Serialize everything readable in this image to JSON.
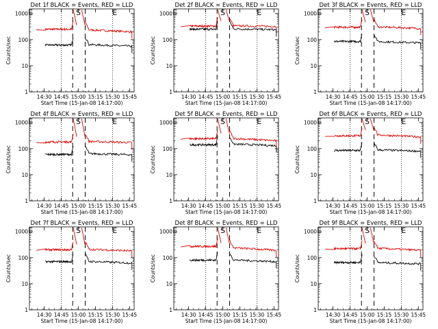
{
  "figure": {
    "xlabel": "Start Time (15-Jan-08 14:17:00)",
    "ylabel": "Counts/sec",
    "xtick_labels": [
      "14:30",
      "14:45",
      "15:00",
      "15:15",
      "15:30",
      "15:45"
    ],
    "ytick_labels": [
      "1",
      "10",
      "100",
      "1000"
    ],
    "markers": [
      "E",
      "S",
      "E"
    ],
    "colors": {
      "events": "#000000",
      "lld": "#dd0000"
    },
    "xlim_minutes_from_1417": [
      0,
      92
    ],
    "ylim": [
      1,
      1500
    ],
    "y_log": true
  },
  "chart_data": [
    {
      "type": "line",
      "title": "Det 1f BLACK = Events, RED = LLD",
      "series": [
        {
          "name": "Events",
          "values": {
            "pre": 62,
            "post": 65,
            "end": 56
          }
        },
        {
          "name": "LLD",
          "values": {
            "pre": 250,
            "post": 240,
            "end": 200
          }
        }
      ]
    },
    {
      "type": "line",
      "title": "Det 2f BLACK = Events, RED = LLD",
      "series": [
        {
          "name": "Events",
          "values": {
            "pre": 250,
            "post": 260,
            "end": 240
          }
        },
        {
          "name": "LLD",
          "values": {
            "pre": 330,
            "post": 340,
            "end": 320
          }
        }
      ]
    },
    {
      "type": "line",
      "title": "Det 3f BLACK = Events, RED = LLD",
      "series": [
        {
          "name": "Events",
          "values": {
            "pre": 85,
            "post": 85,
            "end": 75
          }
        },
        {
          "name": "LLD",
          "values": {
            "pre": 300,
            "post": 310,
            "end": 270
          }
        }
      ]
    },
    {
      "type": "line",
      "title": "Det 4f BLACK = Events, RED = LLD",
      "series": [
        {
          "name": "Events",
          "values": {
            "pre": 60,
            "post": 65,
            "end": 58
          }
        },
        {
          "name": "LLD",
          "values": {
            "pre": 180,
            "post": 190,
            "end": 170
          }
        }
      ]
    },
    {
      "type": "line",
      "title": "Det 5f BLACK = Events, RED = LLD",
      "series": [
        {
          "name": "Events",
          "values": {
            "pre": 140,
            "post": 150,
            "end": 130
          }
        },
        {
          "name": "LLD",
          "values": {
            "pre": 240,
            "post": 250,
            "end": 200
          }
        }
      ]
    },
    {
      "type": "line",
      "title": "Det 6f BLACK = Events, RED = LLD",
      "series": [
        {
          "name": "Events",
          "values": {
            "pre": 85,
            "post": 90,
            "end": 80
          }
        },
        {
          "name": "LLD",
          "values": {
            "pre": 310,
            "post": 340,
            "end": 280
          }
        }
      ]
    },
    {
      "type": "line",
      "title": "Det 7f BLACK = Events, RED = LLD",
      "series": [
        {
          "name": "Events",
          "values": {
            "pre": 70,
            "post": 72,
            "end": 62
          }
        },
        {
          "name": "LLD",
          "values": {
            "pre": 200,
            "post": 210,
            "end": 180
          }
        }
      ]
    },
    {
      "type": "line",
      "title": "Det 8f BLACK = Events, RED = LLD",
      "series": [
        {
          "name": "Events",
          "values": {
            "pre": 80,
            "post": 82,
            "end": 70
          }
        },
        {
          "name": "LLD",
          "values": {
            "pre": 270,
            "post": 240,
            "end": 190
          }
        }
      ]
    },
    {
      "type": "line",
      "title": "Det 9f BLACK = Events, RED = LLD",
      "series": [
        {
          "name": "Events",
          "values": {
            "pre": 65,
            "post": 65,
            "end": 58
          }
        },
        {
          "name": "LLD",
          "values": {
            "pre": 220,
            "post": 230,
            "end": 190
          }
        }
      ]
    }
  ]
}
